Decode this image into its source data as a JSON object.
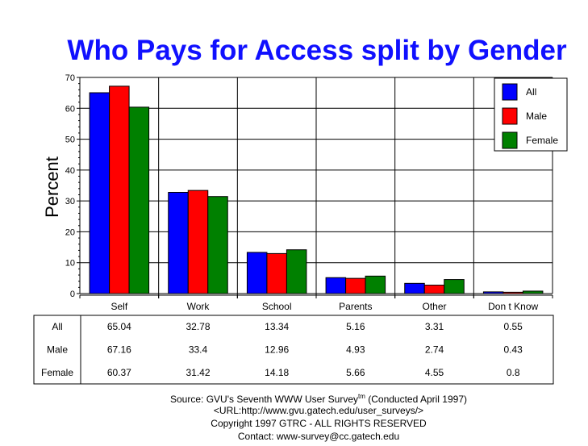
{
  "chart_data": {
    "type": "bar",
    "title": "Who Pays for Access split by Gender",
    "xlabel": "",
    "ylabel": "Percent",
    "ylim": [
      0,
      70
    ],
    "yticks": [
      "0",
      "10",
      "20",
      "30",
      "40",
      "50",
      "60",
      "70"
    ],
    "grid": true,
    "legend_position": "top-right",
    "categories": [
      "Self",
      "Work",
      "School",
      "Parents",
      "Other",
      "Don t Know"
    ],
    "series": [
      {
        "name": "All",
        "color": "#0000ff",
        "values": [
          65.04,
          32.78,
          13.34,
          5.16,
          3.31,
          0.55
        ],
        "labels": [
          "65.04",
          "32.78",
          "13.34",
          "5.16",
          "3.31",
          "0.55"
        ]
      },
      {
        "name": "Male",
        "color": "#ff0000",
        "values": [
          67.16,
          33.4,
          12.96,
          4.93,
          2.74,
          0.43
        ],
        "labels": [
          "67.16",
          "33.4",
          "12.96",
          "4.93",
          "2.74",
          "0.43"
        ]
      },
      {
        "name": "Female",
        "color": "#008000",
        "values": [
          60.37,
          31.42,
          14.18,
          5.66,
          4.55,
          0.8
        ],
        "labels": [
          "60.37",
          "31.42",
          "14.18",
          "5.66",
          "4.55",
          "0.8"
        ]
      }
    ]
  },
  "footer": {
    "source": "Source: GVU's Seventh WWW User Survey",
    "tm": "tm",
    "conducted": " (Conducted April 1997)",
    "url": "<URL:http://www.gvu.gatech.edu/user_surveys/>",
    "copyright": "Copyright 1997 GTRC - ALL RIGHTS RESERVED",
    "contact": "Contact: www-survey@cc.gatech.edu"
  }
}
